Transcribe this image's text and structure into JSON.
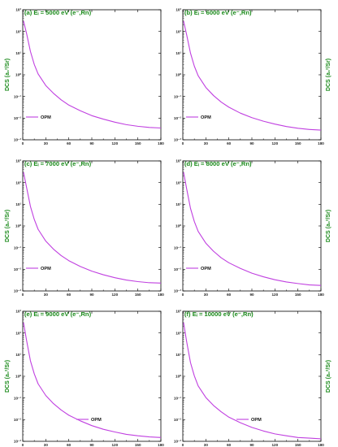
{
  "colors": {
    "curve": "#c040e0",
    "label": "#1a8a1a",
    "axis": "#000000"
  },
  "chart_data": [
    {
      "id": "a",
      "type": "line",
      "title": "(a) Eᵢ = 5000 eV (e⁻,Rn)",
      "ylabel": "DCS (a₀²/Sr)",
      "ylabel_side": "left",
      "xlabel": "",
      "xlim": [
        0,
        180
      ],
      "ylim": [
        0.001,
        1000
      ],
      "yscale": "log",
      "xticks": [
        "0",
        "30",
        "60",
        "90",
        "120",
        "150",
        "180"
      ],
      "yticks": [
        "10⁻³",
        "10⁻²",
        "10⁻¹",
        "10⁰",
        "10¹",
        "10²",
        "10³"
      ],
      "legend": "top-left-bottom",
      "series": [
        {
          "name": "OPM",
          "x": [
            1,
            5,
            10,
            15,
            20,
            30,
            40,
            50,
            60,
            75,
            90,
            105,
            120,
            135,
            150,
            165,
            180
          ],
          "y": [
            300,
            80,
            12,
            3,
            1.1,
            0.32,
            0.14,
            0.07,
            0.04,
            0.022,
            0.013,
            0.009,
            0.0065,
            0.005,
            0.0042,
            0.0037,
            0.0035
          ]
        }
      ]
    },
    {
      "id": "b",
      "type": "line",
      "title": "(b) Eᵢ = 6000 eV (e⁻,Rn)",
      "ylabel": "DCS (a₀²/Sr)",
      "ylabel_side": "right",
      "xlabel": "",
      "xlim": [
        0,
        180
      ],
      "ylim": [
        0.001,
        1000
      ],
      "yscale": "log",
      "xticks": [
        "0",
        "30",
        "60",
        "90",
        "120",
        "150",
        "180"
      ],
      "yticks": [
        "10⁻³",
        "10⁻²",
        "10⁻¹",
        "10⁰",
        "10¹",
        "10²",
        "10³"
      ],
      "legend": "bottom-left",
      "series": [
        {
          "name": "OPM",
          "x": [
            1,
            5,
            10,
            15,
            20,
            30,
            40,
            50,
            60,
            75,
            90,
            105,
            120,
            135,
            150,
            165,
            180
          ],
          "y": [
            300,
            70,
            10,
            2.5,
            0.9,
            0.26,
            0.11,
            0.055,
            0.032,
            0.017,
            0.0105,
            0.0072,
            0.0053,
            0.0041,
            0.0034,
            0.003,
            0.0028
          ]
        }
      ]
    },
    {
      "id": "c",
      "type": "line",
      "title": "(c) Eᵢ = 7000 eV (e⁻,Rn)",
      "ylabel": "DCS (a₀²/Sr)",
      "ylabel_side": "left",
      "xlabel": "",
      "xlim": [
        0,
        180
      ],
      "ylim": [
        0.001,
        1000
      ],
      "yscale": "log",
      "xticks": [
        "0",
        "30",
        "60",
        "90",
        "120",
        "150",
        "180"
      ],
      "yticks": [
        "10⁻³",
        "10⁻²",
        "10⁻¹",
        "10⁰",
        "10¹",
        "10²",
        "10³"
      ],
      "legend": "bottom-left",
      "series": [
        {
          "name": "OPM",
          "x": [
            1,
            5,
            10,
            15,
            20,
            30,
            40,
            50,
            60,
            75,
            90,
            105,
            120,
            135,
            150,
            165,
            180
          ],
          "y": [
            300,
            60,
            8,
            2,
            0.7,
            0.2,
            0.085,
            0.043,
            0.025,
            0.0135,
            0.0082,
            0.0056,
            0.0041,
            0.0032,
            0.0027,
            0.0024,
            0.0023
          ]
        }
      ]
    },
    {
      "id": "d",
      "type": "line",
      "title": "(d) Eᵢ = 8000 eV (e⁻,Rn)",
      "ylabel": "DCS (a₀²/Sr)",
      "ylabel_side": "right",
      "xlabel": "",
      "xlim": [
        0,
        180
      ],
      "ylim": [
        0.001,
        1000
      ],
      "yscale": "log",
      "xticks": [
        "0",
        "30",
        "60",
        "90",
        "120",
        "150",
        "180"
      ],
      "yticks": [
        "10⁻³",
        "10⁻²",
        "10⁻¹",
        "10⁰",
        "10¹",
        "10²",
        "10³"
      ],
      "legend": "bottom-left",
      "series": [
        {
          "name": "OPM",
          "x": [
            1,
            5,
            10,
            15,
            20,
            30,
            40,
            50,
            60,
            75,
            90,
            105,
            120,
            135,
            150,
            165,
            180
          ],
          "y": [
            300,
            52,
            6.5,
            1.6,
            0.56,
            0.16,
            0.068,
            0.034,
            0.02,
            0.011,
            0.0066,
            0.0045,
            0.0033,
            0.0026,
            0.0022,
            0.0019,
            0.0018
          ]
        }
      ]
    },
    {
      "id": "e",
      "type": "line",
      "title": "(e) Eᵢ = 9000 eV (e⁻,Rn)",
      "ylabel": "DCS (a₀²/Sr)",
      "ylabel_side": "left",
      "xlabel": "Scattering Angle θ (deg.)",
      "xlim": [
        0,
        180
      ],
      "ylim": [
        0.001,
        1000
      ],
      "yscale": "log",
      "xticks": [
        "0",
        "30",
        "60",
        "90",
        "120",
        "150",
        "180"
      ],
      "yticks": [
        "10⁻³",
        "10⁻²",
        "10⁻¹",
        "10⁰",
        "10¹",
        "10²",
        "10³"
      ],
      "legend": "bottom-center",
      "series": [
        {
          "name": "OPM",
          "x": [
            1,
            5,
            10,
            15,
            20,
            30,
            40,
            50,
            60,
            75,
            90,
            105,
            120,
            135,
            150,
            165,
            180
          ],
          "y": [
            300,
            45,
            5.2,
            1.3,
            0.45,
            0.13,
            0.055,
            0.028,
            0.016,
            0.0088,
            0.0053,
            0.0036,
            0.0027,
            0.0021,
            0.0018,
            0.0016,
            0.0015
          ]
        }
      ]
    },
    {
      "id": "f",
      "type": "line",
      "title": "(f) Eᵢ = 10000 eV (e⁻,Rn)",
      "ylabel": "DCS (a₀²/Sr)",
      "ylabel_side": "right",
      "xlabel": "Scattering Angle θ (deg.)",
      "xlim": [
        0,
        180
      ],
      "ylim": [
        0.001,
        1000
      ],
      "yscale": "log",
      "xticks": [
        "0",
        "30",
        "60",
        "90",
        "120",
        "150",
        "180"
      ],
      "yticks": [
        "10⁻³",
        "10⁻²",
        "10⁻¹",
        "10⁰",
        "10¹",
        "10²",
        "10³"
      ],
      "legend": "bottom-center",
      "series": [
        {
          "name": "OPM",
          "x": [
            1,
            5,
            10,
            15,
            20,
            30,
            40,
            50,
            60,
            75,
            90,
            105,
            120,
            135,
            150,
            165,
            180
          ],
          "y": [
            300,
            40,
            4.3,
            1.05,
            0.36,
            0.105,
            0.045,
            0.023,
            0.013,
            0.0072,
            0.0044,
            0.003,
            0.0022,
            0.0018,
            0.0015,
            0.0014,
            0.0013
          ]
        }
      ]
    }
  ]
}
